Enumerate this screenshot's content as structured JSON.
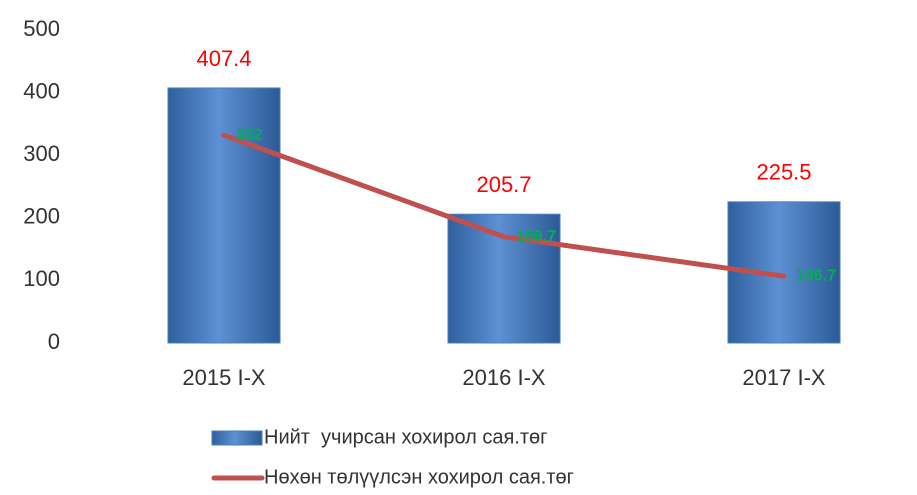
{
  "chart_data": {
    "type": "bar",
    "categories": [
      "2015 I-X",
      "2016 I-X",
      "2017 I-X"
    ],
    "series": [
      {
        "name": "Нийт  учирсан хохирол сая.төг",
        "type": "bar",
        "color": "#4a7ebb",
        "label_color": "#ff0000",
        "values": [
          407.4,
          205.7,
          225.5
        ]
      },
      {
        "name": "Нөхөн төлүүлсэн хохирол сая.төг",
        "type": "line",
        "color": "#c0504d",
        "label_color": "#00b050",
        "values": [
          332,
          169.7,
          106.7
        ]
      }
    ],
    "ylim": [
      0,
      500
    ],
    "yticks": [
      0,
      100,
      200,
      300,
      400,
      500
    ],
    "legend": "bottom"
  }
}
